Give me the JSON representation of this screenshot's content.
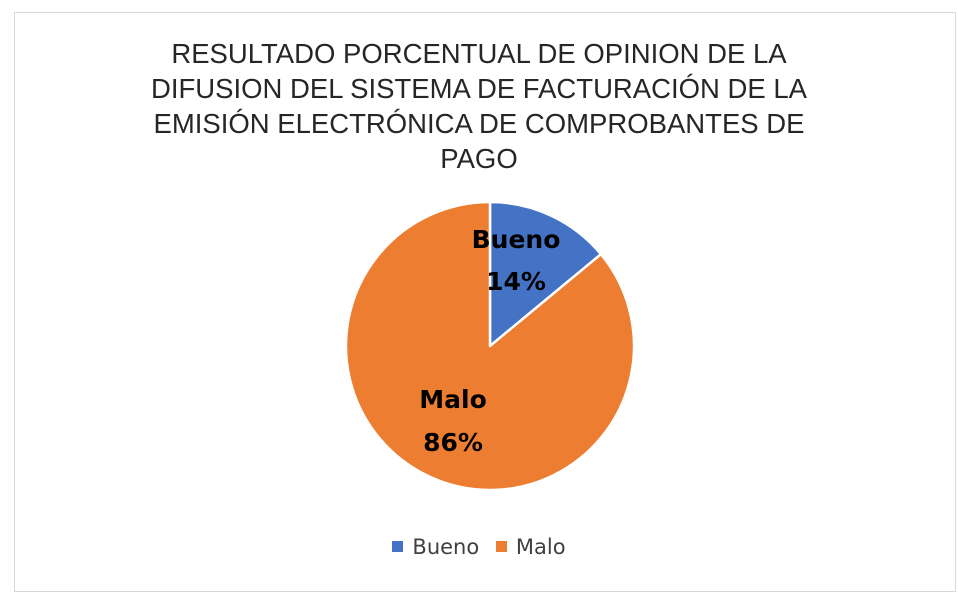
{
  "chart_data": {
    "type": "pie",
    "title_lines": [
      "RESULTADO PORCENTUAL DE OPINION DE LA",
      "DIFUSION DEL SISTEMA DE FACTURACIÓN DE LA",
      "EMISIÓN ELECTRÓNICA DE COMPROBANTES DE",
      "PAGO"
    ],
    "slices": [
      {
        "name": "Bueno",
        "value": 14,
        "label": "14%",
        "color": "#4472C4"
      },
      {
        "name": "Malo",
        "value": 86,
        "label": "86%",
        "color": "#ED7D31"
      }
    ],
    "legend": {
      "position": "bottom",
      "items": [
        "Bueno",
        "Malo"
      ]
    }
  }
}
